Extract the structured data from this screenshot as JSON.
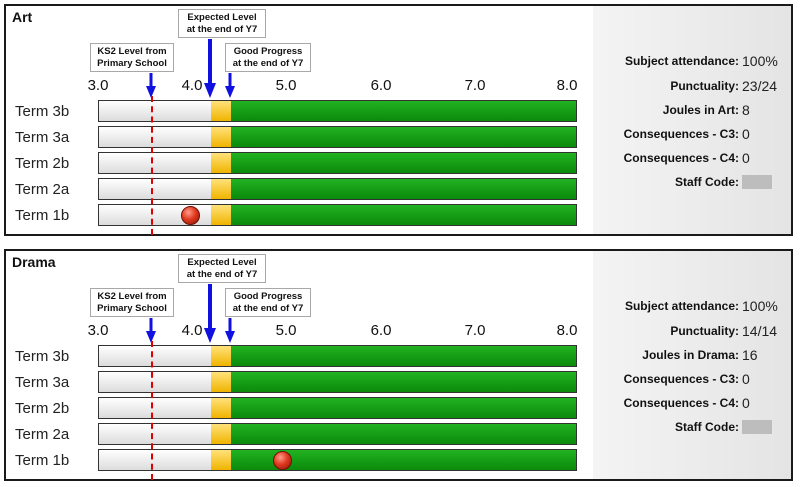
{
  "colors": {
    "bar_green": "#18a018",
    "bar_yellow": "#f5c020",
    "arrow_blue": "#1010e0",
    "ks2_line_red": "#e00000",
    "marker_red": "#d03018"
  },
  "axis": {
    "min": 3.0,
    "max": 8.0,
    "ticks": [
      "3.0",
      "4.0",
      "5.0",
      "6.0",
      "7.0",
      "8.0"
    ]
  },
  "callouts": {
    "ks2": "KS2 Level from\nPrimary School",
    "expected": "Expected Level\nat the end of Y7",
    "good": "Good Progress\nat the end of Y7"
  },
  "terms": [
    "Term 3b",
    "Term 3a",
    "Term 2b",
    "Term 2a",
    "Term 1b"
  ],
  "stat_labels": {
    "attendance": "Subject attendance:",
    "punctuality": "Punctuality:",
    "c3": "Consequences - C3:",
    "c4": "Consequences - C4:",
    "staff": "Staff Code:"
  },
  "subjects": [
    {
      "name": "Art",
      "ks2_level": 3.58,
      "expected_level": 4.2,
      "good_progress_level": 4.4,
      "current_marker": {
        "term": "Term 1b",
        "level": 4.0
      },
      "attendance": "100%",
      "punctuality": "23/24",
      "joules_label": "Joules in Art:",
      "joules": "8",
      "c3": "0",
      "c4": "0"
    },
    {
      "name": "Drama",
      "ks2_level": 3.58,
      "expected_level": 4.2,
      "good_progress_level": 4.4,
      "current_marker": {
        "term": "Term 1b",
        "level": 5.0
      },
      "attendance": "100%",
      "punctuality": "14/14",
      "joules_label": "Joules in Drama:",
      "joules": "16",
      "c3": "0",
      "c4": "0"
    }
  ]
}
